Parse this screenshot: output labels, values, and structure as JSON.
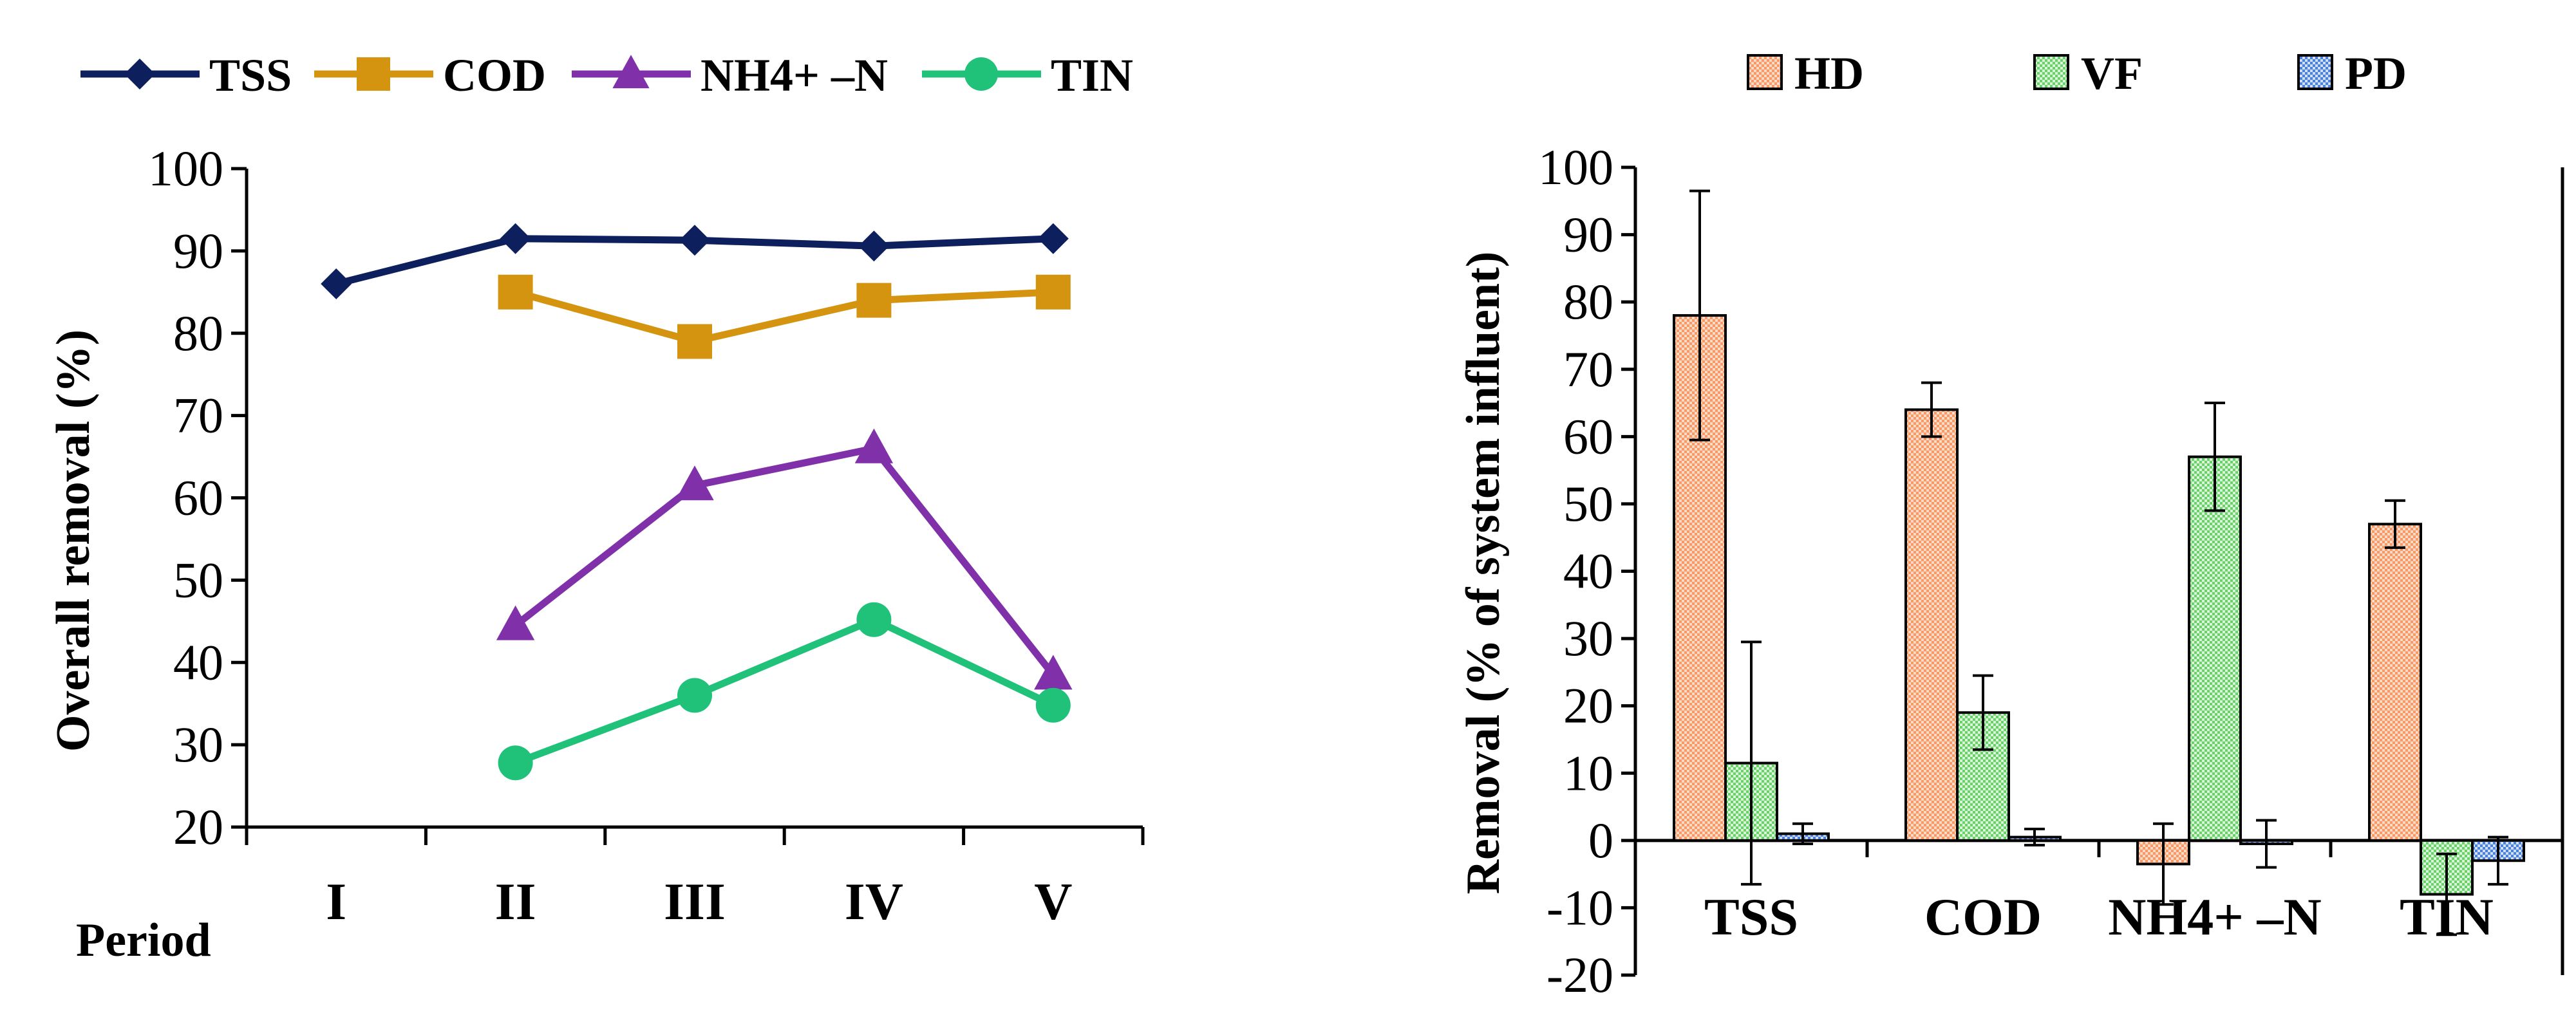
{
  "chart_data": [
    {
      "type": "line",
      "title": "",
      "xlabel": "Period",
      "ylabel": "Overall removal (%)",
      "ylim": [
        20,
        100
      ],
      "yticks": [
        20,
        30,
        40,
        50,
        60,
        70,
        80,
        90,
        100
      ],
      "categories": [
        "I",
        "II",
        "III",
        "IV",
        "V"
      ],
      "legend_position": "top",
      "series": [
        {
          "name": "TSS",
          "color": "#0d1f5c",
          "marker": "diamond",
          "values": [
            86,
            91.5,
            91.3,
            90.6,
            91.5
          ]
        },
        {
          "name": "COD",
          "color": "#d4940f",
          "marker": "square",
          "values": [
            null,
            85,
            79,
            84,
            85
          ]
        },
        {
          "name": "NH4+ –N",
          "color": "#8030a8",
          "marker": "triangle",
          "values": [
            null,
            44.5,
            61.5,
            66,
            38.5
          ]
        },
        {
          "name": "TIN",
          "color": "#20c27a",
          "marker": "circle",
          "values": [
            null,
            27.8,
            36,
            45.2,
            34.8
          ]
        }
      ]
    },
    {
      "type": "bar",
      "title": "",
      "xlabel": "",
      "ylabel": "Removal (% of system influent)",
      "ylim": [
        -20,
        100
      ],
      "yticks": [
        -20,
        -10,
        0,
        10,
        20,
        30,
        40,
        50,
        60,
        70,
        80,
        90,
        100
      ],
      "categories": [
        "TSS",
        "COD",
        "NH4+ –N",
        "TIN"
      ],
      "legend_position": "top",
      "series": [
        {
          "name": "HD",
          "color": "#f59a6a",
          "values": [
            78,
            64,
            -3.5,
            47
          ],
          "errors": [
            18.5,
            4,
            6,
            3.5
          ]
        },
        {
          "name": "VF",
          "color": "#8fe08f",
          "values": [
            11.5,
            19,
            57,
            -8
          ],
          "errors": [
            18,
            5.5,
            8,
            6
          ]
        },
        {
          "name": "PD",
          "color": "#6a9ae6",
          "values": [
            1,
            0.5,
            -0.5,
            -3
          ],
          "errors": [
            1.5,
            1.2,
            3.5,
            3.5
          ]
        }
      ]
    }
  ]
}
